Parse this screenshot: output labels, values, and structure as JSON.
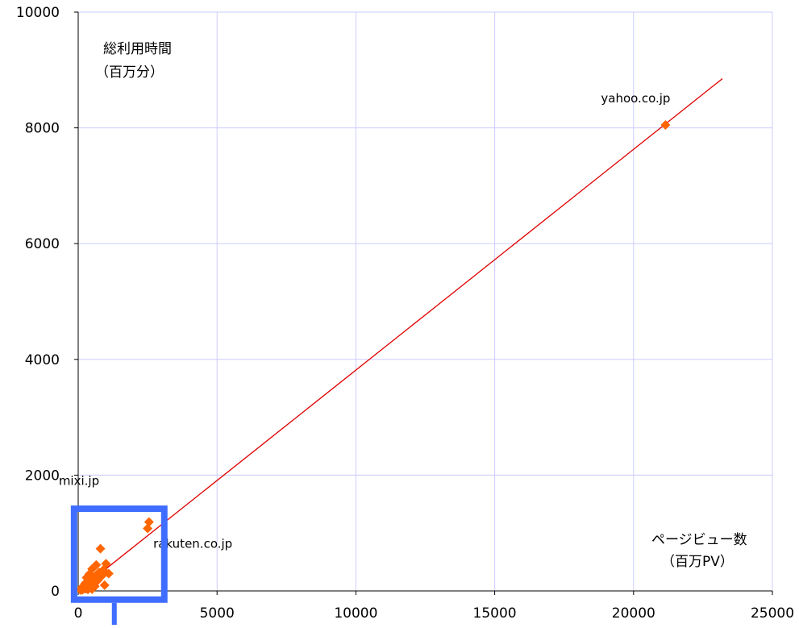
{
  "chart_data": {
    "type": "scatter",
    "title": "",
    "xlabel": "ページビュー数",
    "xlabel_unit": "（百万PV）",
    "ylabel": "総利用時間",
    "ylabel_unit": "（百万分）",
    "xlim": [
      0,
      25000
    ],
    "ylim": [
      0,
      10000
    ],
    "x_ticks": [
      0,
      5000,
      10000,
      15000,
      20000,
      25000
    ],
    "y_ticks": [
      0,
      2000,
      4000,
      6000,
      8000,
      10000
    ],
    "x_tick_labels": [
      "0",
      "5000",
      "10000",
      "15000",
      "20000",
      "25000"
    ],
    "y_tick_labels": [
      "0",
      "2000",
      "4000",
      "6000",
      "8000",
      "10000"
    ],
    "grid": true,
    "grid_color": "#ccccff",
    "marker_color": "#ff6600",
    "trendline_color": "#e00000",
    "highlight_color": "#3f6dff",
    "trendline": {
      "from": [
        0,
        0
      ],
      "to": [
        23200,
        8850
      ]
    },
    "points": [
      {
        "x": 21150,
        "y": 8050,
        "label": "yahoo.co.jp"
      },
      {
        "x": 2550,
        "y": 1190,
        "label": "mixi.jp"
      },
      {
        "x": 2500,
        "y": 1080,
        "label": "rakuten.co.jp"
      },
      {
        "x": 800,
        "y": 730
      },
      {
        "x": 1000,
        "y": 470
      },
      {
        "x": 650,
        "y": 450
      },
      {
        "x": 500,
        "y": 380
      },
      {
        "x": 900,
        "y": 360
      },
      {
        "x": 1100,
        "y": 300
      },
      {
        "x": 750,
        "y": 320
      },
      {
        "x": 400,
        "y": 290
      },
      {
        "x": 600,
        "y": 250
      },
      {
        "x": 300,
        "y": 230
      },
      {
        "x": 850,
        "y": 260
      },
      {
        "x": 450,
        "y": 200
      },
      {
        "x": 700,
        "y": 180
      },
      {
        "x": 350,
        "y": 160
      },
      {
        "x": 550,
        "y": 150
      },
      {
        "x": 250,
        "y": 130
      },
      {
        "x": 400,
        "y": 110
      },
      {
        "x": 950,
        "y": 100
      },
      {
        "x": 200,
        "y": 90
      },
      {
        "x": 600,
        "y": 80
      },
      {
        "x": 300,
        "y": 70
      },
      {
        "x": 150,
        "y": 60
      },
      {
        "x": 450,
        "y": 55
      },
      {
        "x": 100,
        "y": 40
      },
      {
        "x": 250,
        "y": 35
      },
      {
        "x": 500,
        "y": 30
      },
      {
        "x": 150,
        "y": 20
      },
      {
        "x": 350,
        "y": 25
      },
      {
        "x": 80,
        "y": 15
      }
    ],
    "highlight_box": {
      "x0": -150,
      "y0": -150,
      "x1": 3100,
      "y1": 1420
    }
  }
}
